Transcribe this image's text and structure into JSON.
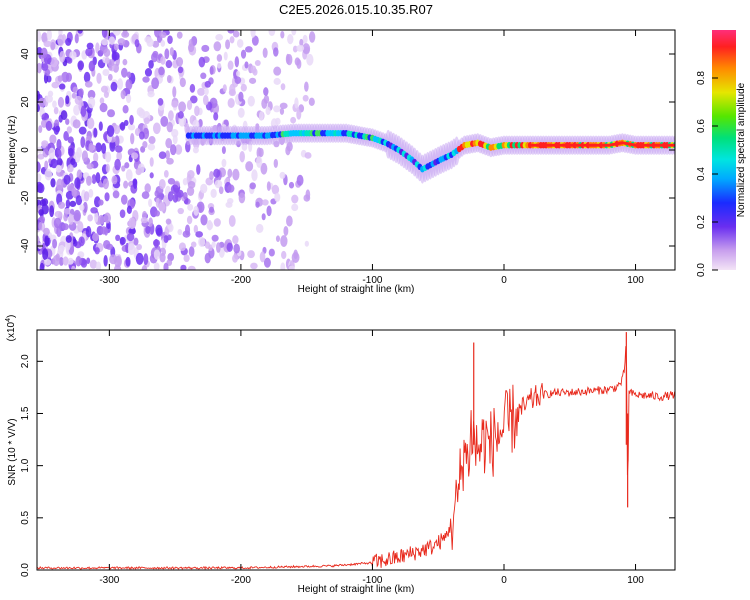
{
  "title": "C2E5.2026.015.10.35.R07",
  "chart_data": [
    {
      "type": "heatmap",
      "xlabel": "Height of straight line (km)",
      "ylabel": "Frequency (Hz)",
      "xlim": [
        -355,
        130
      ],
      "ylim": [
        -50,
        50
      ],
      "xticks": [
        -300,
        -200,
        -100,
        0,
        100
      ],
      "yticks": [
        -40,
        -20,
        0,
        20,
        40
      ],
      "xtick_labels": [
        "-300",
        "-200",
        "-100",
        "0",
        "100"
      ],
      "ytick_labels": [
        "-40",
        "-20",
        "0",
        "20",
        "40"
      ],
      "colorbar": {
        "label": "Normalized spectral amplitude",
        "range": [
          0,
          1
        ],
        "ticks": [
          0.0,
          0.2,
          0.4,
          0.6,
          0.8
        ],
        "tick_labels": [
          "0.0",
          "0.2",
          "0.4",
          "0.6",
          "0.8"
        ]
      },
      "ridge": {
        "x": [
          -240,
          -210,
          -180,
          -160,
          -140,
          -120,
          -100,
          -90,
          -80,
          -70,
          -62,
          -55,
          -48,
          -40,
          -30,
          -20,
          -10,
          0,
          20,
          50,
          80,
          90,
          100,
          130
        ],
        "y": [
          6,
          6,
          6,
          7,
          7,
          7,
          5,
          3,
          0,
          -4,
          -8,
          -6,
          -4,
          -2,
          2,
          3,
          1,
          2,
          2,
          2,
          2,
          3,
          2,
          2
        ]
      }
    },
    {
      "type": "line",
      "xlabel": "Height of straight line (km)",
      "ylabel": "SNR (10 * V/V)",
      "multiplier_label": "(x10",
      "multiplier_exponent": "4",
      "xlim": [
        -355,
        130
      ],
      "ylim": [
        0,
        2.3
      ],
      "xticks": [
        -300,
        -200,
        -100,
        0,
        100
      ],
      "yticks": [
        0.0,
        0.5,
        1.0,
        1.5,
        2.0
      ],
      "xtick_labels": [
        "-300",
        "-200",
        "-100",
        "0",
        "100"
      ],
      "ytick_labels": [
        "0.0",
        "0.5",
        "1.0",
        "1.5",
        "2.0"
      ],
      "series": [
        {
          "name": "SNR",
          "color": "#e8291c",
          "x": [
            -355,
            -200,
            -130,
            -100,
            -80,
            -65,
            -55,
            -45,
            -40,
            -36,
            -33,
            -30,
            -28,
            -25,
            -22,
            -20,
            -15,
            -10,
            -5,
            0,
            5,
            10,
            15,
            20,
            25,
            30,
            40,
            50,
            60,
            70,
            80,
            85,
            88,
            90,
            92,
            93,
            94,
            95,
            100,
            110,
            120,
            130
          ],
          "values": [
            0.02,
            0.02,
            0.04,
            0.07,
            0.12,
            0.18,
            0.22,
            0.3,
            0.45,
            0.6,
            0.9,
            1.2,
            1.0,
            1.35,
            1.2,
            1.15,
            1.25,
            1.2,
            1.3,
            1.35,
            1.42,
            1.5,
            1.55,
            1.62,
            1.66,
            1.68,
            1.7,
            1.7,
            1.71,
            1.72,
            1.73,
            1.75,
            1.78,
            1.82,
            1.95,
            2.28,
            0.6,
            1.7,
            1.68,
            1.67,
            1.66,
            1.68
          ]
        }
      ],
      "spikes": [
        {
          "x": -23,
          "value": 2.18
        },
        {
          "x": 93,
          "value": 2.28
        },
        {
          "x": 94,
          "value": 0.6
        }
      ]
    }
  ]
}
